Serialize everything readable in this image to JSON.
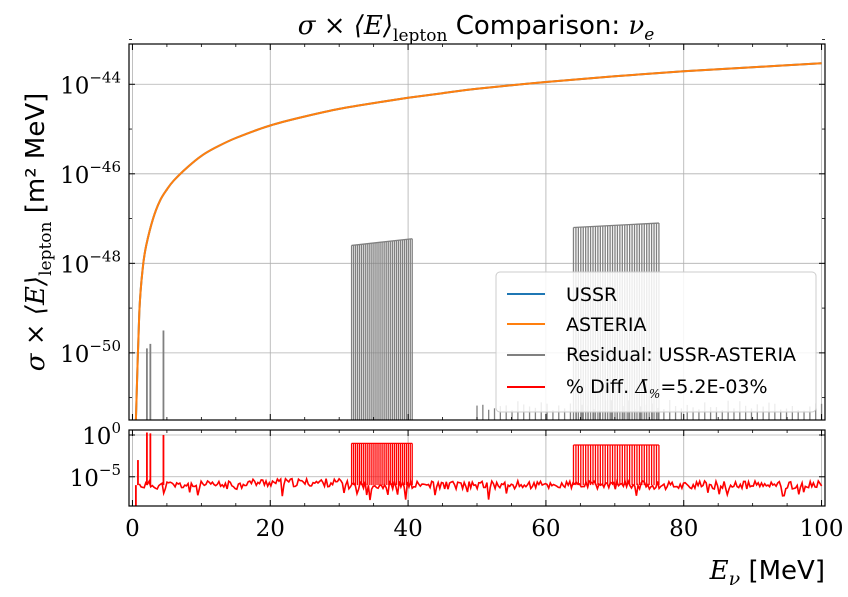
{
  "chart_data": [
    {
      "type": "line",
      "title_prefix": "σ × ⟨E⟩",
      "title_sub": "lepton",
      "title_mid": " Comparison: ",
      "title_nu": "ν",
      "title_nu_sub": "e",
      "ylabel_prefix": "σ × ⟨E⟩",
      "ylabel_sub": "lepton",
      "ylabel_unit": " [m² MeV]",
      "yscale": "log",
      "xlim": [
        -0.5,
        100.5
      ],
      "ylim_log10": [
        -51.5,
        -43.1
      ],
      "yticks": [
        {
          "exp": -44,
          "label": "10",
          "sup": "−44"
        },
        {
          "exp": -46,
          "label": "10",
          "sup": "−46"
        },
        {
          "exp": -48,
          "label": "10",
          "sup": "−48"
        },
        {
          "exp": -50,
          "label": "10",
          "sup": "−50"
        }
      ],
      "grid": true,
      "legend_position": "lower-right",
      "series": [
        {
          "name": "USSR",
          "color": "#1f77b4",
          "x": [
            0.5,
            1,
            1.5,
            2,
            3,
            4,
            5,
            6,
            8,
            10,
            12,
            15,
            20,
            25,
            30,
            35,
            40,
            45,
            50,
            60,
            70,
            80,
            90,
            100
          ],
          "log10_y": [
            -51.5,
            -49.1,
            -48.1,
            -47.6,
            -47.0,
            -46.6,
            -46.35,
            -46.15,
            -45.85,
            -45.6,
            -45.42,
            -45.2,
            -44.92,
            -44.72,
            -44.55,
            -44.42,
            -44.3,
            -44.2,
            -44.1,
            -43.95,
            -43.82,
            -43.71,
            -43.62,
            -43.53
          ]
        },
        {
          "name": "ASTERIA",
          "color": "#ff7f0e",
          "x": [
            0.5,
            1,
            1.5,
            2,
            3,
            4,
            5,
            6,
            8,
            10,
            12,
            15,
            20,
            25,
            30,
            35,
            40,
            45,
            50,
            60,
            70,
            80,
            90,
            100
          ],
          "log10_y": [
            -51.5,
            -49.1,
            -48.1,
            -47.6,
            -47.0,
            -46.6,
            -46.35,
            -46.15,
            -45.85,
            -45.6,
            -45.42,
            -45.2,
            -44.92,
            -44.72,
            -44.55,
            -44.42,
            -44.3,
            -44.2,
            -44.1,
            -43.95,
            -43.82,
            -43.71,
            -43.62,
            -43.53
          ]
        },
        {
          "name": "Residual: USSR-ASTERIA",
          "color": "#808080",
          "spikes": [
            {
              "x": 2.1,
              "log10_y": -49.9
            },
            {
              "x": 2.6,
              "log10_y": -49.8
            },
            {
              "x": 4.5,
              "log10_y": -49.5
            },
            {
              "band": [
                31.8,
                40.6
              ],
              "log10_y_start": -47.6,
              "log10_y_end": -47.45,
              "count": 32
            },
            {
              "band": [
                64.0,
                76.4
              ],
              "log10_y_start": -47.2,
              "log10_y_end": -47.1,
              "count": 36
            },
            {
              "band": [
                50.0,
                100.0
              ],
              "log10_y_start": -51.3,
              "log10_y_end": -51.3,
              "count": 60,
              "small": true
            }
          ]
        },
        {
          "name": "% Diff.",
          "legend_mean_value": "=5.2E-03%",
          "color": "#ff0000"
        }
      ],
      "legend_mean_symbol": "Δ̄",
      "legend_mean_sub": "%"
    },
    {
      "type": "line",
      "yscale": "log",
      "ylim_log10": [
        -8.5,
        0.6
      ],
      "yticks": [
        {
          "exp": 0,
          "label": "10",
          "sup": "0"
        },
        {
          "exp": -5,
          "label": "10",
          "sup": "−5"
        }
      ],
      "xticks": [
        0,
        20,
        40,
        60,
        80,
        100
      ],
      "xlabel_var": "E",
      "xlabel_sub": "ν",
      "xlabel_unit": " [MeV]",
      "xlim": [
        -0.5,
        100.5
      ],
      "series": [
        {
          "name": "% Diff.",
          "color": "#ff0000",
          "baseline_log10": -6.0,
          "spikes": [
            {
              "x": 0.5,
              "log10_y": -8.5
            },
            {
              "x": 0.8,
              "log10_y": -3.0
            },
            {
              "x": 2.1,
              "log10_y": 0.3
            },
            {
              "x": 2.6,
              "log10_y": 0.2
            },
            {
              "x": 4.5,
              "log10_y": 0.0
            },
            {
              "band": [
                31.8,
                40.6
              ],
              "log10_y": -1.0,
              "count": 32
            },
            {
              "band": [
                64.0,
                76.4
              ],
              "log10_y": -1.2,
              "count": 36
            }
          ]
        }
      ]
    }
  ]
}
